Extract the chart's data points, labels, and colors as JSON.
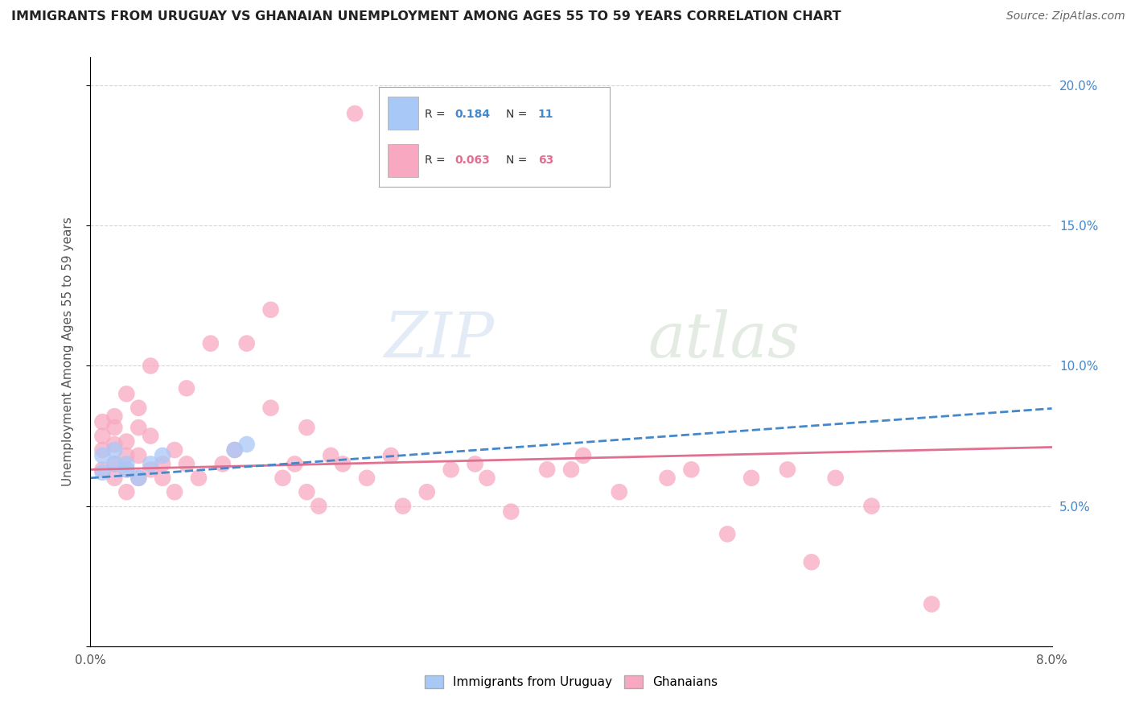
{
  "title": "IMMIGRANTS FROM URUGUAY VS GHANAIAN UNEMPLOYMENT AMONG AGES 55 TO 59 YEARS CORRELATION CHART",
  "source": "Source: ZipAtlas.com",
  "ylabel": "Unemployment Among Ages 55 to 59 years",
  "xlim": [
    0.0,
    0.08
  ],
  "ylim": [
    0.0,
    0.21
  ],
  "xticks": [
    0.0,
    0.01,
    0.02,
    0.03,
    0.04,
    0.05,
    0.06,
    0.07,
    0.08
  ],
  "xticklabels": [
    "0.0%",
    "",
    "",
    "",
    "",
    "",
    "",
    "",
    "8.0%"
  ],
  "yticks": [
    0.0,
    0.05,
    0.1,
    0.15,
    0.2
  ],
  "yticklabels_right": [
    "",
    "5.0%",
    "10.0%",
    "15.0%",
    "20.0%"
  ],
  "legend1_R": "0.184",
  "legend1_N": "11",
  "legend2_R": "0.063",
  "legend2_N": "63",
  "uruguay_color": "#a8c8f8",
  "ghanaian_color": "#f8a8c0",
  "uruguay_line_color": "#4488cc",
  "ghanaian_line_color": "#e07090",
  "background_color": "#ffffff",
  "uruguay_x": [
    0.001,
    0.001,
    0.002,
    0.002,
    0.003,
    0.003,
    0.004,
    0.005,
    0.006,
    0.012,
    0.013
  ],
  "uruguay_y": [
    0.062,
    0.068,
    0.065,
    0.07,
    0.063,
    0.065,
    0.06,
    0.065,
    0.068,
    0.07,
    0.072
  ],
  "ghanaian_x": [
    0.001,
    0.001,
    0.001,
    0.001,
    0.002,
    0.002,
    0.002,
    0.002,
    0.002,
    0.003,
    0.003,
    0.003,
    0.003,
    0.003,
    0.004,
    0.004,
    0.004,
    0.004,
    0.005,
    0.005,
    0.005,
    0.006,
    0.006,
    0.007,
    0.007,
    0.008,
    0.008,
    0.009,
    0.01,
    0.011,
    0.012,
    0.013,
    0.015,
    0.015,
    0.016,
    0.017,
    0.018,
    0.018,
    0.019,
    0.02,
    0.021,
    0.022,
    0.023,
    0.025,
    0.026,
    0.028,
    0.03,
    0.032,
    0.033,
    0.035,
    0.038,
    0.04,
    0.041,
    0.044,
    0.048,
    0.05,
    0.053,
    0.055,
    0.058,
    0.06,
    0.062,
    0.065,
    0.07
  ],
  "ghanaian_y": [
    0.063,
    0.07,
    0.075,
    0.08,
    0.06,
    0.065,
    0.072,
    0.078,
    0.082,
    0.055,
    0.063,
    0.068,
    0.073,
    0.09,
    0.06,
    0.068,
    0.078,
    0.085,
    0.063,
    0.075,
    0.1,
    0.06,
    0.065,
    0.055,
    0.07,
    0.065,
    0.092,
    0.06,
    0.108,
    0.065,
    0.07,
    0.108,
    0.085,
    0.12,
    0.06,
    0.065,
    0.055,
    0.078,
    0.05,
    0.068,
    0.065,
    0.19,
    0.06,
    0.068,
    0.05,
    0.055,
    0.063,
    0.065,
    0.06,
    0.048,
    0.063,
    0.063,
    0.068,
    0.055,
    0.06,
    0.063,
    0.04,
    0.06,
    0.063,
    0.03,
    0.06,
    0.05,
    0.015
  ]
}
